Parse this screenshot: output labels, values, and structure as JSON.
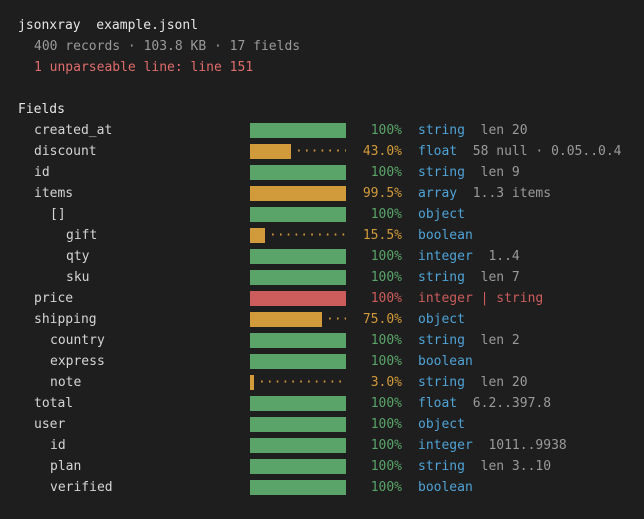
{
  "header": {
    "app": "jsonxray",
    "file": "example.jsonl",
    "summary": "400 records · 103.8 KB · 17 fields",
    "warning": "1 unparseable line: line 151"
  },
  "section_title": "Fields",
  "colors": {
    "green": "#5aa469",
    "amber": "#d19a3a",
    "red": "#cd5c5c",
    "type_blue": "#4fa3d6"
  },
  "fields": [
    {
      "name": "created_at",
      "depth": 1,
      "pct": "100%",
      "fill": 1.0,
      "status": "ok",
      "type": "string",
      "detail": "len 20"
    },
    {
      "name": "discount",
      "depth": 1,
      "pct": "43.0%",
      "fill": 0.43,
      "status": "partial",
      "type": "float",
      "detail": "58 null · 0.05..0.4"
    },
    {
      "name": "id",
      "depth": 1,
      "pct": "100%",
      "fill": 1.0,
      "status": "ok",
      "type": "string",
      "detail": "len 9"
    },
    {
      "name": "items",
      "depth": 1,
      "pct": "99.5%",
      "fill": 0.995,
      "status": "partial",
      "type": "array",
      "detail": "1..3 items"
    },
    {
      "name": "[]",
      "depth": 2,
      "pct": "100%",
      "fill": 1.0,
      "status": "ok",
      "type": "object",
      "detail": ""
    },
    {
      "name": "gift",
      "depth": 3,
      "pct": "15.5%",
      "fill": 0.155,
      "status": "partial",
      "type": "boolean",
      "detail": ""
    },
    {
      "name": "qty",
      "depth": 3,
      "pct": "100%",
      "fill": 1.0,
      "status": "ok",
      "type": "integer",
      "detail": "1..4"
    },
    {
      "name": "sku",
      "depth": 3,
      "pct": "100%",
      "fill": 1.0,
      "status": "ok",
      "type": "string",
      "detail": "len 7"
    },
    {
      "name": "price",
      "depth": 1,
      "pct": "100%",
      "fill": 1.0,
      "status": "conflict",
      "type": "integer | string",
      "detail": ""
    },
    {
      "name": "shipping",
      "depth": 1,
      "pct": "75.0%",
      "fill": 0.75,
      "status": "partial",
      "type": "object",
      "detail": ""
    },
    {
      "name": "country",
      "depth": 2,
      "pct": "100%",
      "fill": 1.0,
      "status": "ok",
      "type": "string",
      "detail": "len 2"
    },
    {
      "name": "express",
      "depth": 2,
      "pct": "100%",
      "fill": 1.0,
      "status": "ok",
      "type": "boolean",
      "detail": ""
    },
    {
      "name": "note",
      "depth": 2,
      "pct": "3.0%",
      "fill": 0.03,
      "status": "partial",
      "type": "string",
      "detail": "len 20"
    },
    {
      "name": "total",
      "depth": 1,
      "pct": "100%",
      "fill": 1.0,
      "status": "ok",
      "type": "float",
      "detail": "6.2..397.8"
    },
    {
      "name": "user",
      "depth": 1,
      "pct": "100%",
      "fill": 1.0,
      "status": "ok",
      "type": "object",
      "detail": ""
    },
    {
      "name": "id",
      "depth": 2,
      "pct": "100%",
      "fill": 1.0,
      "status": "ok",
      "type": "integer",
      "detail": "1011..9938"
    },
    {
      "name": "plan",
      "depth": 2,
      "pct": "100%",
      "fill": 1.0,
      "status": "ok",
      "type": "string",
      "detail": "len 3..10"
    },
    {
      "name": "verified",
      "depth": 2,
      "pct": "100%",
      "fill": 1.0,
      "status": "ok",
      "type": "boolean",
      "detail": ""
    }
  ]
}
